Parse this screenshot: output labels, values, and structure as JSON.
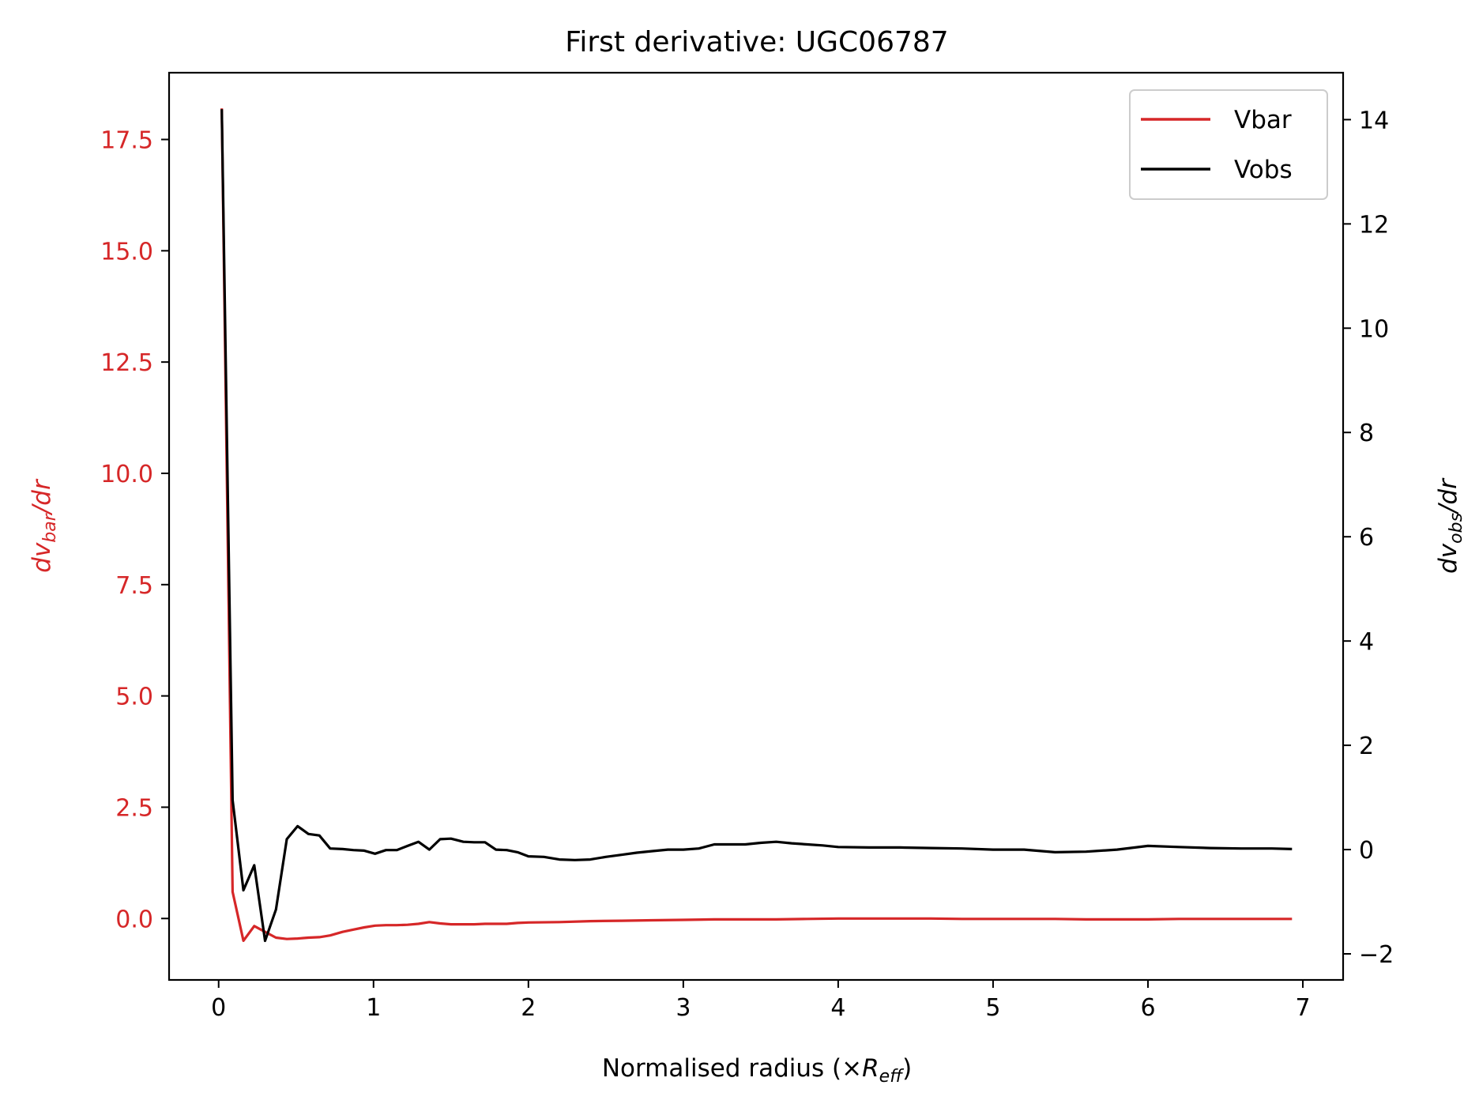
{
  "chart_data": {
    "type": "line",
    "title": "First derivative: UGC06787",
    "xlabel": {
      "main": "Normalised radius (×",
      "var": "R",
      "sub": "eff",
      "close": ")"
    },
    "ylabel_left": {
      "pre": "dv",
      "sub": "bar",
      "post": "/dr"
    },
    "ylabel_right": {
      "pre": "dv",
      "sub": "obs",
      "post": "/dr"
    },
    "xlim": [
      -0.32,
      7.26
    ],
    "ylim_left": [
      -1.38,
      19.0
    ],
    "ylim_right": [
      -2.5,
      14.9
    ],
    "x_ticks": [
      {
        "value": 0,
        "label": "0"
      },
      {
        "value": 1,
        "label": "1"
      },
      {
        "value": 2,
        "label": "2"
      },
      {
        "value": 3,
        "label": "3"
      },
      {
        "value": 4,
        "label": "4"
      },
      {
        "value": 5,
        "label": "5"
      },
      {
        "value": 6,
        "label": "6"
      },
      {
        "value": 7,
        "label": "7"
      }
    ],
    "y_ticks_left": [
      {
        "value": 0.0,
        "label": "0.0"
      },
      {
        "value": 2.5,
        "label": "2.5"
      },
      {
        "value": 5.0,
        "label": "5.0"
      },
      {
        "value": 7.5,
        "label": "7.5"
      },
      {
        "value": 10.0,
        "label": "10.0"
      },
      {
        "value": 12.5,
        "label": "12.5"
      },
      {
        "value": 15.0,
        "label": "15.0"
      },
      {
        "value": 17.5,
        "label": "17.5"
      }
    ],
    "y_ticks_right": [
      {
        "value": -2,
        "label": "−2"
      },
      {
        "value": 0,
        "label": "0"
      },
      {
        "value": 2,
        "label": "2"
      },
      {
        "value": 4,
        "label": "4"
      },
      {
        "value": 6,
        "label": "6"
      },
      {
        "value": 8,
        "label": "8"
      },
      {
        "value": 10,
        "label": "10"
      },
      {
        "value": 12,
        "label": "12"
      },
      {
        "value": 14,
        "label": "14"
      }
    ],
    "legend_position": "top-right",
    "left_axis_color": "#d62728",
    "series": [
      {
        "name": "Vbar",
        "axis": "left",
        "color": "#d62728",
        "points": [
          [
            0.02,
            18.2
          ],
          [
            0.09,
            0.6
          ],
          [
            0.16,
            -0.5
          ],
          [
            0.23,
            -0.17
          ],
          [
            0.3,
            -0.3
          ],
          [
            0.37,
            -0.43
          ],
          [
            0.44,
            -0.46
          ],
          [
            0.51,
            -0.45
          ],
          [
            0.58,
            -0.43
          ],
          [
            0.65,
            -0.42
          ],
          [
            0.72,
            -0.38
          ],
          [
            0.8,
            -0.3
          ],
          [
            0.87,
            -0.25
          ],
          [
            0.94,
            -0.2
          ],
          [
            1.01,
            -0.16
          ],
          [
            1.08,
            -0.15
          ],
          [
            1.15,
            -0.15
          ],
          [
            1.22,
            -0.14
          ],
          [
            1.29,
            -0.12
          ],
          [
            1.36,
            -0.08
          ],
          [
            1.43,
            -0.11
          ],
          [
            1.5,
            -0.13
          ],
          [
            1.58,
            -0.13
          ],
          [
            1.65,
            -0.13
          ],
          [
            1.72,
            -0.12
          ],
          [
            1.79,
            -0.12
          ],
          [
            1.86,
            -0.12
          ],
          [
            1.93,
            -0.1
          ],
          [
            2.0,
            -0.09
          ],
          [
            2.2,
            -0.08
          ],
          [
            2.4,
            -0.06
          ],
          [
            2.6,
            -0.05
          ],
          [
            2.8,
            -0.04
          ],
          [
            3.0,
            -0.03
          ],
          [
            3.2,
            -0.02
          ],
          [
            3.4,
            -0.02
          ],
          [
            3.6,
            -0.02
          ],
          [
            3.8,
            -0.01
          ],
          [
            4.0,
            0.0
          ],
          [
            4.2,
            0.0
          ],
          [
            4.4,
            0.0
          ],
          [
            4.6,
            0.0
          ],
          [
            4.8,
            -0.01
          ],
          [
            5.0,
            -0.01
          ],
          [
            5.2,
            -0.01
          ],
          [
            5.4,
            -0.01
          ],
          [
            5.6,
            -0.02
          ],
          [
            5.8,
            -0.02
          ],
          [
            6.0,
            -0.02
          ],
          [
            6.2,
            -0.01
          ],
          [
            6.4,
            -0.01
          ],
          [
            6.6,
            -0.01
          ],
          [
            6.8,
            -0.01
          ],
          [
            6.93,
            -0.01
          ]
        ]
      },
      {
        "name": "Vobs",
        "axis": "right",
        "color": "#000000",
        "points": [
          [
            0.02,
            14.2
          ],
          [
            0.09,
            0.95
          ],
          [
            0.16,
            -0.78
          ],
          [
            0.23,
            -0.3
          ],
          [
            0.3,
            -1.75
          ],
          [
            0.37,
            -1.15
          ],
          [
            0.44,
            0.2
          ],
          [
            0.51,
            0.45
          ],
          [
            0.58,
            0.3
          ],
          [
            0.65,
            0.27
          ],
          [
            0.72,
            0.02
          ],
          [
            0.8,
            0.01
          ],
          [
            0.87,
            -0.01
          ],
          [
            0.94,
            -0.02
          ],
          [
            1.01,
            -0.08
          ],
          [
            1.08,
            -0.01
          ],
          [
            1.15,
            -0.01
          ],
          [
            1.22,
            0.07
          ],
          [
            1.29,
            0.15
          ],
          [
            1.36,
            0.0
          ],
          [
            1.43,
            0.2
          ],
          [
            1.5,
            0.21
          ],
          [
            1.58,
            0.15
          ],
          [
            1.65,
            0.14
          ],
          [
            1.72,
            0.14
          ],
          [
            1.79,
            0.0
          ],
          [
            1.86,
            -0.01
          ],
          [
            1.93,
            -0.05
          ],
          [
            2.0,
            -0.13
          ],
          [
            2.1,
            -0.14
          ],
          [
            2.2,
            -0.19
          ],
          [
            2.3,
            -0.2
          ],
          [
            2.4,
            -0.19
          ],
          [
            2.5,
            -0.14
          ],
          [
            2.6,
            -0.1
          ],
          [
            2.7,
            -0.06
          ],
          [
            2.8,
            -0.03
          ],
          [
            2.9,
            0.0
          ],
          [
            3.0,
            0.0
          ],
          [
            3.1,
            0.02
          ],
          [
            3.2,
            0.1
          ],
          [
            3.3,
            0.1
          ],
          [
            3.4,
            0.1
          ],
          [
            3.5,
            0.13
          ],
          [
            3.6,
            0.15
          ],
          [
            3.7,
            0.12
          ],
          [
            3.8,
            0.1
          ],
          [
            3.9,
            0.08
          ],
          [
            4.0,
            0.05
          ],
          [
            4.2,
            0.04
          ],
          [
            4.4,
            0.04
          ],
          [
            4.6,
            0.03
          ],
          [
            4.8,
            0.02
          ],
          [
            5.0,
            0.0
          ],
          [
            5.2,
            0.0
          ],
          [
            5.4,
            -0.05
          ],
          [
            5.6,
            -0.04
          ],
          [
            5.8,
            0.0
          ],
          [
            6.0,
            0.07
          ],
          [
            6.2,
            0.05
          ],
          [
            6.4,
            0.03
          ],
          [
            6.6,
            0.02
          ],
          [
            6.8,
            0.02
          ],
          [
            6.93,
            0.01
          ]
        ]
      }
    ]
  }
}
